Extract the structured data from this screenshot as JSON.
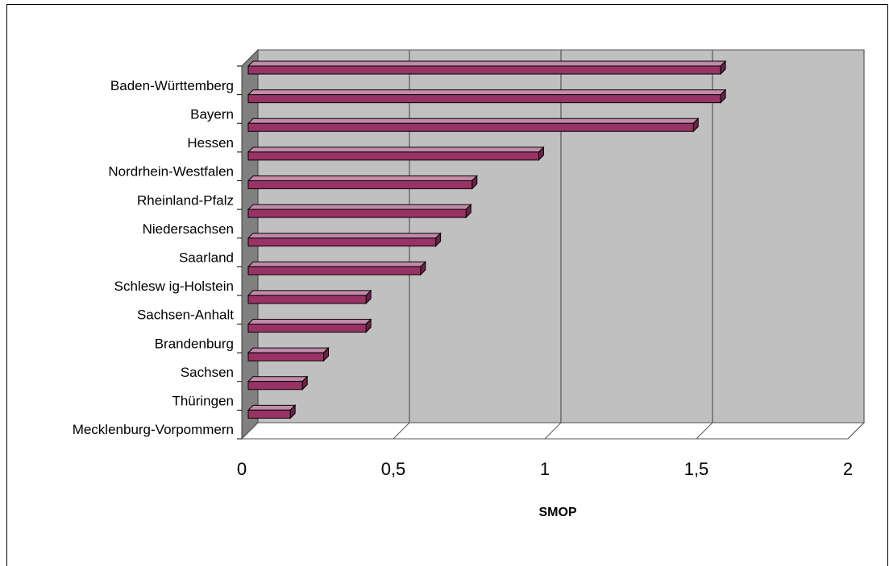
{
  "chart_data": {
    "type": "bar",
    "orientation": "horizontal",
    "three_d": true,
    "title": "",
    "xlabel": "SMOP",
    "ylabel": "",
    "xlim": [
      0,
      2
    ],
    "x_ticks": [
      "0",
      "0,5",
      "1",
      "1,5",
      "2"
    ],
    "x_tick_values": [
      0,
      0.5,
      1,
      1.5,
      2
    ],
    "grid": true,
    "legend": "none",
    "categories": [
      "Baden-Württemberg",
      "Bayern",
      "Hessen",
      "Nordrhein-Westfalen",
      "Rheinland-Pfalz",
      "Niedersachsen",
      "Saarland",
      "Schlesw ig-Holstein",
      "Sachsen-Anhalt",
      "Brandenburg",
      "Sachsen",
      "Thüringen",
      "Mecklenburg-Vorpommern"
    ],
    "values": [
      1.58,
      1.58,
      1.49,
      0.98,
      0.76,
      0.74,
      0.64,
      0.59,
      0.41,
      0.41,
      0.27,
      0.2,
      0.16
    ],
    "colors": {
      "bar_front": "#993366",
      "bar_top": "#c08aa8",
      "bar_side": "#6e2049",
      "plot_back": "#c0c0c0",
      "plot_side_wall": "#808080",
      "grid": "#555555"
    }
  }
}
